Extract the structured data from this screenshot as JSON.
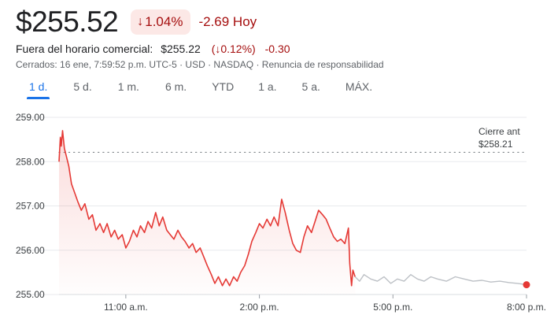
{
  "quote": {
    "price": "$255.52",
    "change_arrow": "↓",
    "change_pct": "1.04%",
    "change_abs": "-2.69 Hoy"
  },
  "after_hours": {
    "label": "Fuera del horario comercial:",
    "price": "$255.22",
    "change_pct": "(↓0.12%)",
    "change_abs": "-0.30"
  },
  "meta": "Cerrados: 16 ene, 7:59:52 p.m. UTC-5 · USD · NASDAQ · Renuncia de responsabilidad",
  "tabs": [
    {
      "label": "1 d.",
      "active": true
    },
    {
      "label": "5 d.",
      "active": false
    },
    {
      "label": "1 m.",
      "active": false
    },
    {
      "label": "6 m.",
      "active": false
    },
    {
      "label": "YTD",
      "active": false
    },
    {
      "label": "1 a.",
      "active": false
    },
    {
      "label": "5 a.",
      "active": false
    },
    {
      "label": "MÁX.",
      "active": false
    }
  ],
  "colors": {
    "down": "#a50e0e",
    "regular_line": "#e53935",
    "extended_line": "#bdc1c6",
    "active_tab": "#1a73e8"
  },
  "chart_data": {
    "type": "line",
    "x_unit": "hours",
    "xlim": [
      9.5,
      20.0
    ],
    "ylim": [
      255.0,
      259.0
    ],
    "y_ticks": [
      {
        "value": 259.0,
        "label": "259.00"
      },
      {
        "value": 258.0,
        "label": "258.00"
      },
      {
        "value": 257.0,
        "label": "257.00"
      },
      {
        "value": 256.0,
        "label": "256.00"
      },
      {
        "value": 255.0,
        "label": "255.00"
      }
    ],
    "x_ticks": [
      {
        "value": 11.0,
        "label": "11:00 a.m."
      },
      {
        "value": 14.0,
        "label": "2:00 p.m."
      },
      {
        "value": 17.0,
        "label": "5:00 p.m."
      },
      {
        "value": 20.0,
        "label": "8:00 p.m."
      }
    ],
    "previous_close": {
      "label": "Cierre ant",
      "value_label": "$258.21",
      "value": 258.21
    },
    "series": [
      {
        "segment": "regular",
        "points": [
          [
            9.5,
            258.0
          ],
          [
            9.53,
            258.55
          ],
          [
            9.55,
            258.35
          ],
          [
            9.58,
            258.7
          ],
          [
            9.62,
            258.3
          ],
          [
            9.67,
            258.1
          ],
          [
            9.72,
            257.9
          ],
          [
            9.78,
            257.5
          ],
          [
            9.85,
            257.3
          ],
          [
            9.92,
            257.1
          ],
          [
            10.0,
            256.9
          ],
          [
            10.08,
            257.05
          ],
          [
            10.17,
            256.7
          ],
          [
            10.25,
            256.8
          ],
          [
            10.33,
            256.45
          ],
          [
            10.42,
            256.6
          ],
          [
            10.5,
            256.4
          ],
          [
            10.58,
            256.6
          ],
          [
            10.67,
            256.3
          ],
          [
            10.75,
            256.45
          ],
          [
            10.83,
            256.25
          ],
          [
            10.92,
            256.35
          ],
          [
            11.0,
            256.05
          ],
          [
            11.08,
            256.2
          ],
          [
            11.17,
            256.45
          ],
          [
            11.25,
            256.3
          ],
          [
            11.33,
            256.55
          ],
          [
            11.42,
            256.4
          ],
          [
            11.5,
            256.65
          ],
          [
            11.58,
            256.5
          ],
          [
            11.67,
            256.85
          ],
          [
            11.75,
            256.55
          ],
          [
            11.83,
            256.75
          ],
          [
            11.92,
            256.45
          ],
          [
            12.0,
            256.35
          ],
          [
            12.08,
            256.25
          ],
          [
            12.17,
            256.45
          ],
          [
            12.25,
            256.3
          ],
          [
            12.33,
            256.2
          ],
          [
            12.42,
            256.05
          ],
          [
            12.5,
            256.15
          ],
          [
            12.58,
            255.95
          ],
          [
            12.67,
            256.05
          ],
          [
            12.75,
            255.85
          ],
          [
            12.83,
            255.65
          ],
          [
            12.92,
            255.45
          ],
          [
            13.0,
            255.25
          ],
          [
            13.08,
            255.4
          ],
          [
            13.17,
            255.2
          ],
          [
            13.25,
            255.35
          ],
          [
            13.33,
            255.2
          ],
          [
            13.42,
            255.4
          ],
          [
            13.5,
            255.3
          ],
          [
            13.58,
            255.5
          ],
          [
            13.67,
            255.65
          ],
          [
            13.75,
            255.9
          ],
          [
            13.83,
            256.2
          ],
          [
            13.92,
            256.4
          ],
          [
            14.0,
            256.6
          ],
          [
            14.08,
            256.5
          ],
          [
            14.17,
            256.7
          ],
          [
            14.25,
            256.55
          ],
          [
            14.33,
            256.75
          ],
          [
            14.42,
            256.55
          ],
          [
            14.5,
            257.15
          ],
          [
            14.58,
            256.85
          ],
          [
            14.67,
            256.45
          ],
          [
            14.75,
            256.15
          ],
          [
            14.83,
            256.0
          ],
          [
            14.92,
            255.95
          ],
          [
            15.0,
            256.3
          ],
          [
            15.08,
            256.55
          ],
          [
            15.17,
            256.4
          ],
          [
            15.25,
            256.65
          ],
          [
            15.33,
            256.9
          ],
          [
            15.42,
            256.8
          ],
          [
            15.5,
            256.7
          ],
          [
            15.58,
            256.5
          ],
          [
            15.67,
            256.3
          ],
          [
            15.75,
            256.2
          ],
          [
            15.83,
            256.25
          ],
          [
            15.92,
            256.15
          ],
          [
            16.0,
            256.5
          ],
          [
            16.03,
            255.7
          ],
          [
            16.07,
            255.2
          ],
          [
            16.1,
            255.55
          ],
          [
            16.15,
            255.4
          ]
        ]
      },
      {
        "segment": "extended",
        "points": [
          [
            16.15,
            255.4
          ],
          [
            16.25,
            255.3
          ],
          [
            16.35,
            255.45
          ],
          [
            16.5,
            255.35
          ],
          [
            16.65,
            255.3
          ],
          [
            16.8,
            255.4
          ],
          [
            16.95,
            255.25
          ],
          [
            17.1,
            255.35
          ],
          [
            17.25,
            255.3
          ],
          [
            17.4,
            255.45
          ],
          [
            17.55,
            255.35
          ],
          [
            17.7,
            255.3
          ],
          [
            17.85,
            255.4
          ],
          [
            18.0,
            255.35
          ],
          [
            18.2,
            255.3
          ],
          [
            18.4,
            255.4
          ],
          [
            18.6,
            255.35
          ],
          [
            18.8,
            255.3
          ],
          [
            19.0,
            255.32
          ],
          [
            19.2,
            255.28
          ],
          [
            19.4,
            255.3
          ],
          [
            19.6,
            255.27
          ],
          [
            19.8,
            255.25
          ],
          [
            20.0,
            255.22
          ]
        ]
      }
    ]
  }
}
